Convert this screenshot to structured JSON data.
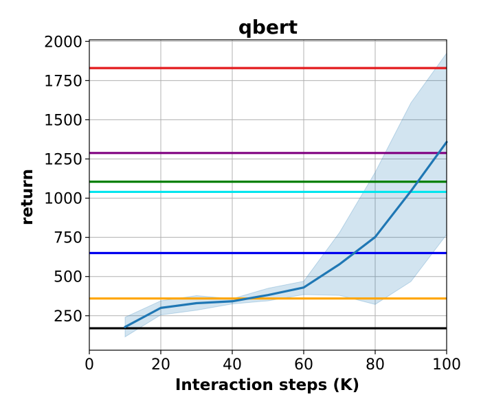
{
  "chart_data": {
    "type": "line",
    "title": "qbert",
    "xlabel": "Interaction steps (K)",
    "ylabel": "return",
    "xlim": [
      0,
      100
    ],
    "ylim": [
      30,
      2010
    ],
    "grid": true,
    "x_ticks": [
      0,
      20,
      40,
      60,
      80,
      100
    ],
    "y_ticks": [
      250,
      500,
      750,
      1000,
      1250,
      1500,
      1750,
      2000
    ],
    "series": [
      {
        "color": "#1f77b4",
        "x": [
          10,
          20,
          30,
          40,
          50,
          60,
          70,
          80,
          90,
          100
        ],
        "y": [
          178,
          300,
          330,
          342,
          382,
          430,
          578,
          752,
          1045,
          1358
        ],
        "band_lower": [
          115,
          255,
          285,
          325,
          345,
          385,
          380,
          322,
          468,
          768
        ],
        "band_upper": [
          240,
          345,
          378,
          358,
          425,
          470,
          780,
          1165,
          1608,
          1925
        ]
      }
    ],
    "reference_lines": [
      {
        "color": "#e31a1c",
        "y": 1830
      },
      {
        "color": "#800080",
        "y": 1288
      },
      {
        "color": "#008000",
        "y": 1105
      },
      {
        "color": "#00e5ee",
        "y": 1040
      },
      {
        "color": "#0000ee",
        "y": 650
      },
      {
        "color": "#ffa500",
        "y": 360
      },
      {
        "color": "#000000",
        "y": 170
      }
    ]
  }
}
